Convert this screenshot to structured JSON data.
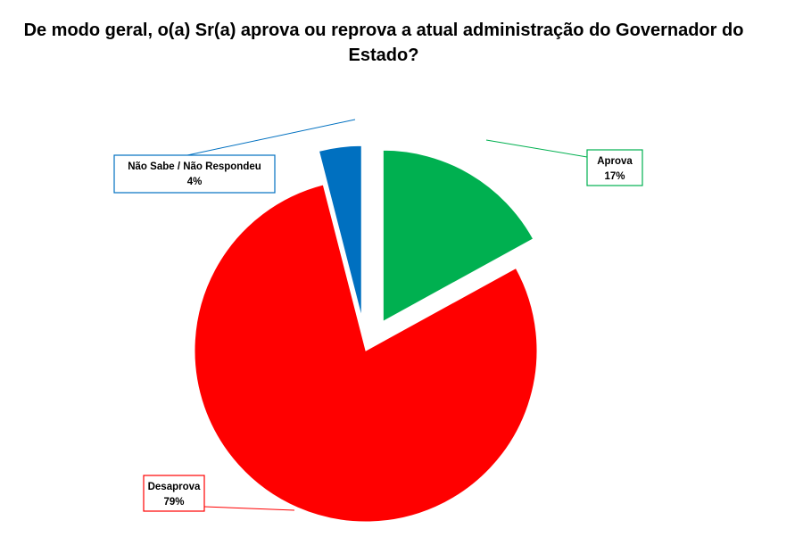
{
  "chart_data": {
    "type": "pie",
    "title": "De modo geral, o(a) Sr(a) aprova ou reprova a atual administração do Governador do Estado?",
    "slices": [
      {
        "label": "Aprova",
        "value_label": "17%",
        "value": 17,
        "color": "#00B050",
        "exploded": true
      },
      {
        "label": "Desaprova",
        "value_label": "79%",
        "value": 79,
        "color": "#FF0000",
        "exploded": false
      },
      {
        "label": "Não Sabe / Não Respondeu",
        "value_label": "4%",
        "value": 4,
        "color": "#0070C0",
        "exploded": true
      }
    ],
    "legend": "none",
    "data_labels": "callouts"
  }
}
